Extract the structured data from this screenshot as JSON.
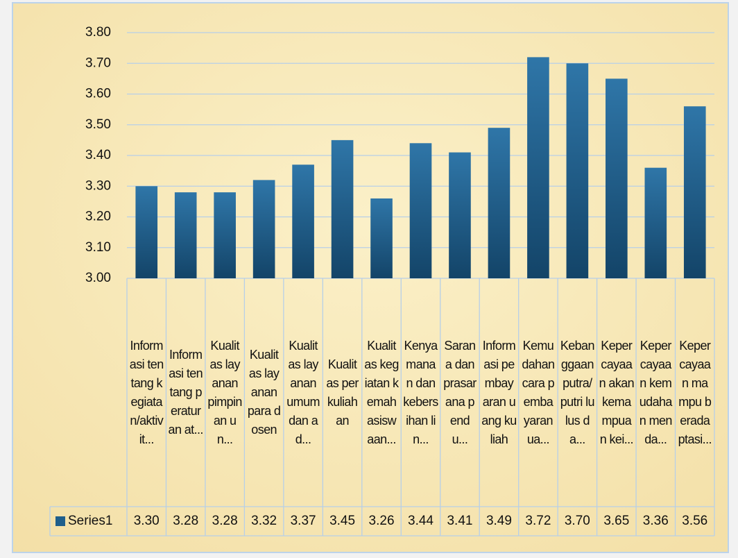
{
  "chart_data": {
    "type": "bar",
    "categories": [
      "Informasi tentang kegiatan/aktivit...",
      "Informasi tentang peraturan at...",
      "Kualitas layanan pimpinan un...",
      "Kualitas layanan para dosen",
      "Kualitas layanan umum dan ad...",
      "Kualitas perkuliahan",
      "Kualitas kegiatan kemahasiswaan...",
      "Kenyamanan dan kebersihan lin...",
      "Sarana dan prasarana pendu...",
      "Informasi pembayaran uang kuliah",
      "Kemudahan cara pembayaran ua...",
      "Kebanggaan putra/putri lulus da...",
      "Kepercayaan akan kemampuan kei...",
      "Kepercayaan kemudahan menda...",
      "Kepercayaan mampu beradaptasi..."
    ],
    "series": [
      {
        "name": "Series1",
        "color": "#1f5f8b",
        "values": [
          3.3,
          3.28,
          3.28,
          3.32,
          3.37,
          3.45,
          3.26,
          3.44,
          3.41,
          3.49,
          3.72,
          3.7,
          3.65,
          3.36,
          3.56
        ],
        "value_labels": [
          "3.30",
          "3.28",
          "3.28",
          "3.32",
          "3.37",
          "3.45",
          "3.26",
          "3.44",
          "3.41",
          "3.49",
          "3.72",
          "3.70",
          "3.65",
          "3.36",
          "3.56"
        ]
      }
    ],
    "ylim": [
      3.0,
      3.8
    ],
    "yticks": [
      {
        "value": 3.0,
        "label": "3.00"
      },
      {
        "value": 3.1,
        "label": "3.10"
      },
      {
        "value": 3.2,
        "label": "3.20"
      },
      {
        "value": 3.3,
        "label": "3.30"
      },
      {
        "value": 3.4,
        "label": "3.40"
      },
      {
        "value": 3.5,
        "label": "3.50"
      },
      {
        "value": 3.6,
        "label": "3.60"
      },
      {
        "value": 3.7,
        "label": "3.70"
      },
      {
        "value": 3.8,
        "label": "3.80"
      }
    ],
    "grid": true,
    "data_table": true
  }
}
